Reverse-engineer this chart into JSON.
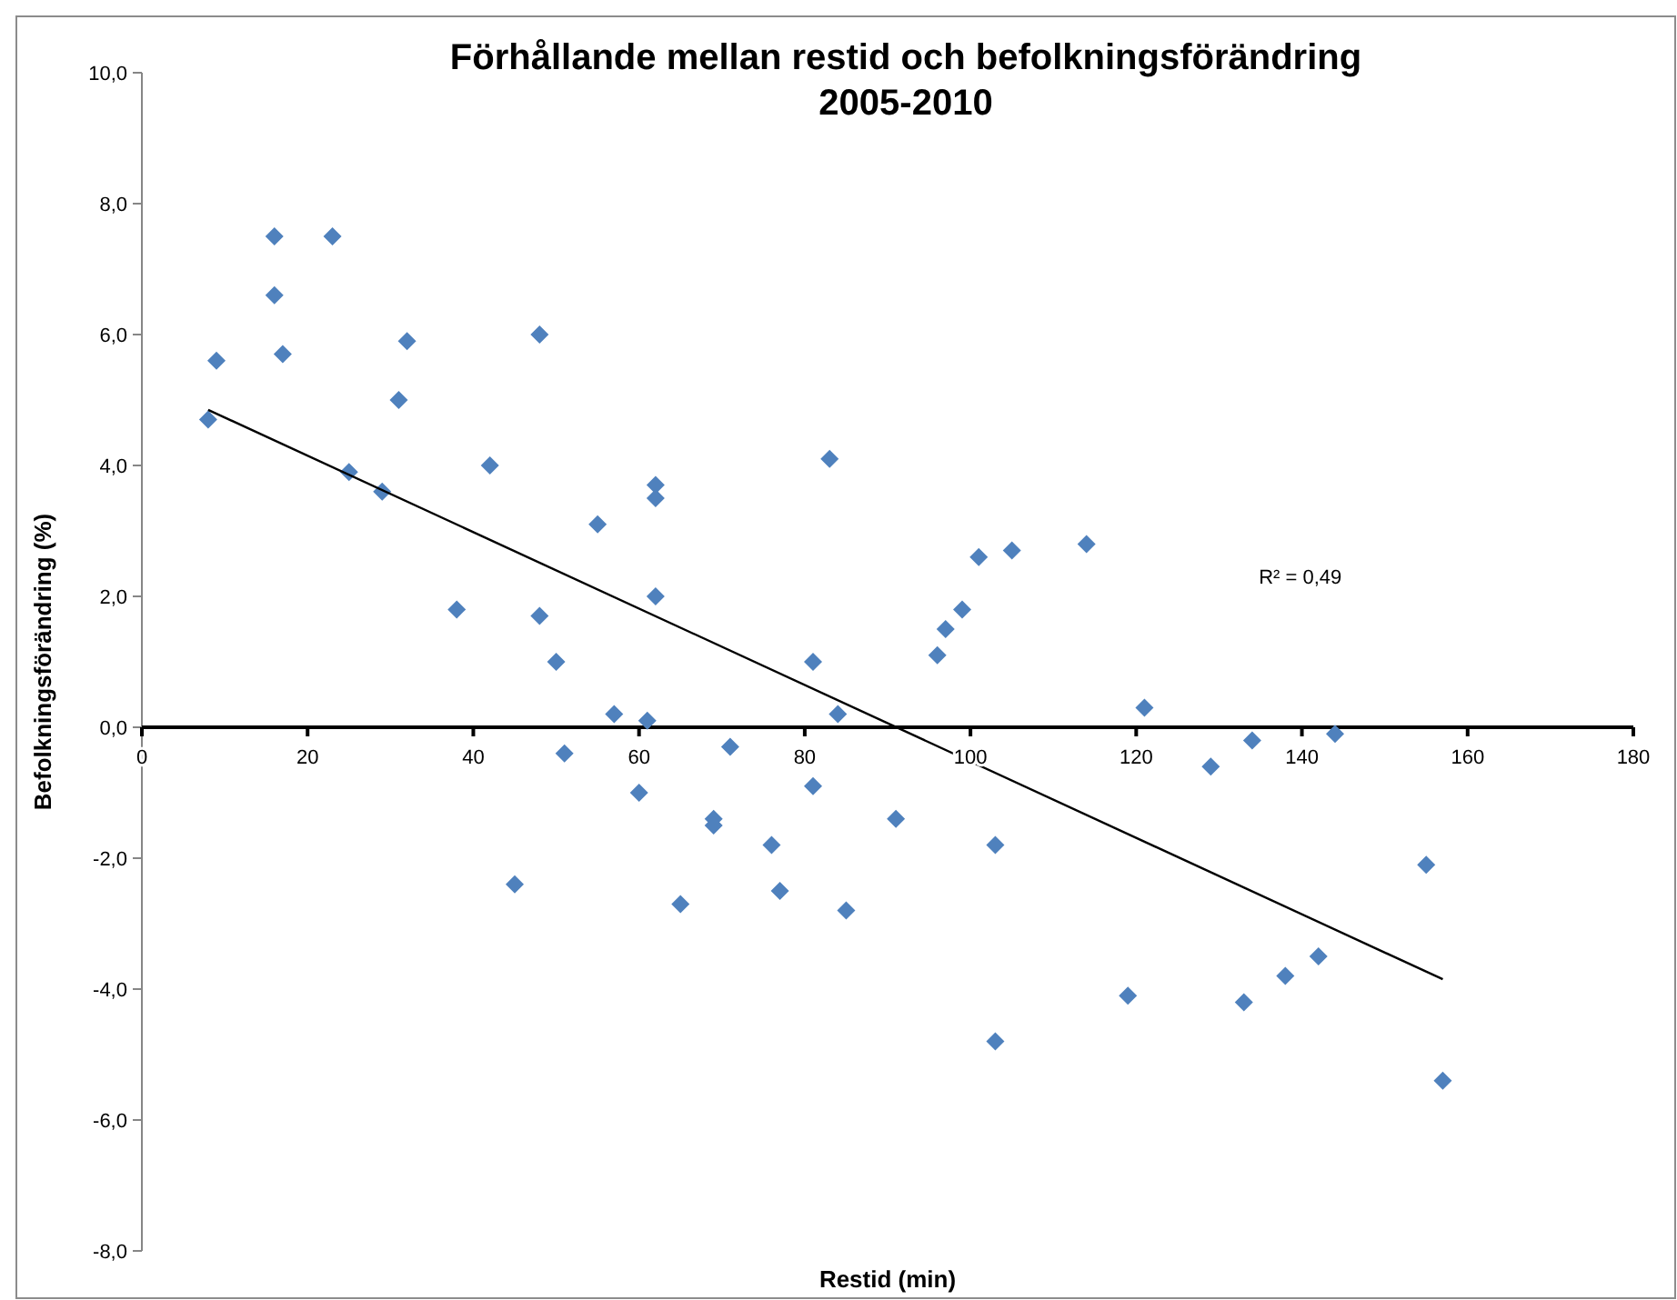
{
  "chart_data": {
    "type": "scatter",
    "title": "Förhållande mellan restid och befolkningsförändring\n2005-2010",
    "xlabel": "Restid (min)",
    "ylabel": "Befolkningsförändring  (%)",
    "annotations": [
      "R² = 0,49"
    ],
    "xlim": [
      0,
      180
    ],
    "xticks": [
      0,
      20,
      40,
      60,
      80,
      100,
      120,
      140,
      160,
      180
    ],
    "ylim": [
      -8,
      10
    ],
    "yticks": [
      {
        "value": -8,
        "label": "-8,0"
      },
      {
        "value": -6,
        "label": "-6,0"
      },
      {
        "value": -4,
        "label": "-4,0"
      },
      {
        "value": -2,
        "label": "-2,0"
      },
      {
        "value": 0,
        "label": "0,0"
      },
      {
        "value": 2,
        "label": "2,0"
      },
      {
        "value": 4,
        "label": "4,0"
      },
      {
        "value": 6,
        "label": "6,0"
      },
      {
        "value": 8,
        "label": "8,0"
      },
      {
        "value": 10,
        "label": "10,0"
      }
    ],
    "grid": false,
    "series": [
      {
        "color": "#4f81bd",
        "marker": "diamond",
        "x": [
          8,
          9,
          16,
          16,
          17,
          23,
          25,
          29,
          31,
          32,
          38,
          42,
          45,
          48,
          48,
          50,
          51,
          55,
          57,
          60,
          61,
          62,
          62,
          62,
          65,
          69,
          69,
          71,
          76,
          77,
          81,
          81,
          83,
          84,
          85,
          91,
          96,
          97,
          99,
          101,
          103,
          103,
          105,
          114,
          119,
          121,
          129,
          133,
          134,
          138,
          142,
          144,
          155,
          157
        ],
        "values": [
          4.7,
          5.6,
          7.5,
          6.6,
          5.7,
          7.5,
          3.9,
          3.6,
          5.0,
          5.9,
          1.8,
          4.0,
          -2.4,
          6.0,
          1.7,
          1.0,
          -0.4,
          3.1,
          0.2,
          -1.0,
          0.1,
          3.7,
          3.5,
          2.0,
          -2.7,
          -1.4,
          -1.5,
          -0.3,
          -1.8,
          -2.5,
          1.0,
          -0.9,
          4.1,
          0.2,
          -2.8,
          -1.4,
          1.1,
          1.5,
          1.8,
          2.6,
          -1.8,
          -4.8,
          2.7,
          2.8,
          -4.1,
          0.3,
          -0.6,
          -4.2,
          -0.2,
          -3.8,
          -3.5,
          -0.1,
          -2.1,
          -5.4
        ]
      },
      {
        "type": "line",
        "color": "#000000",
        "marker": "none",
        "line_style": "solid",
        "x": [
          8,
          157
        ],
        "values": [
          4.85,
          -3.85
        ]
      }
    ]
  }
}
